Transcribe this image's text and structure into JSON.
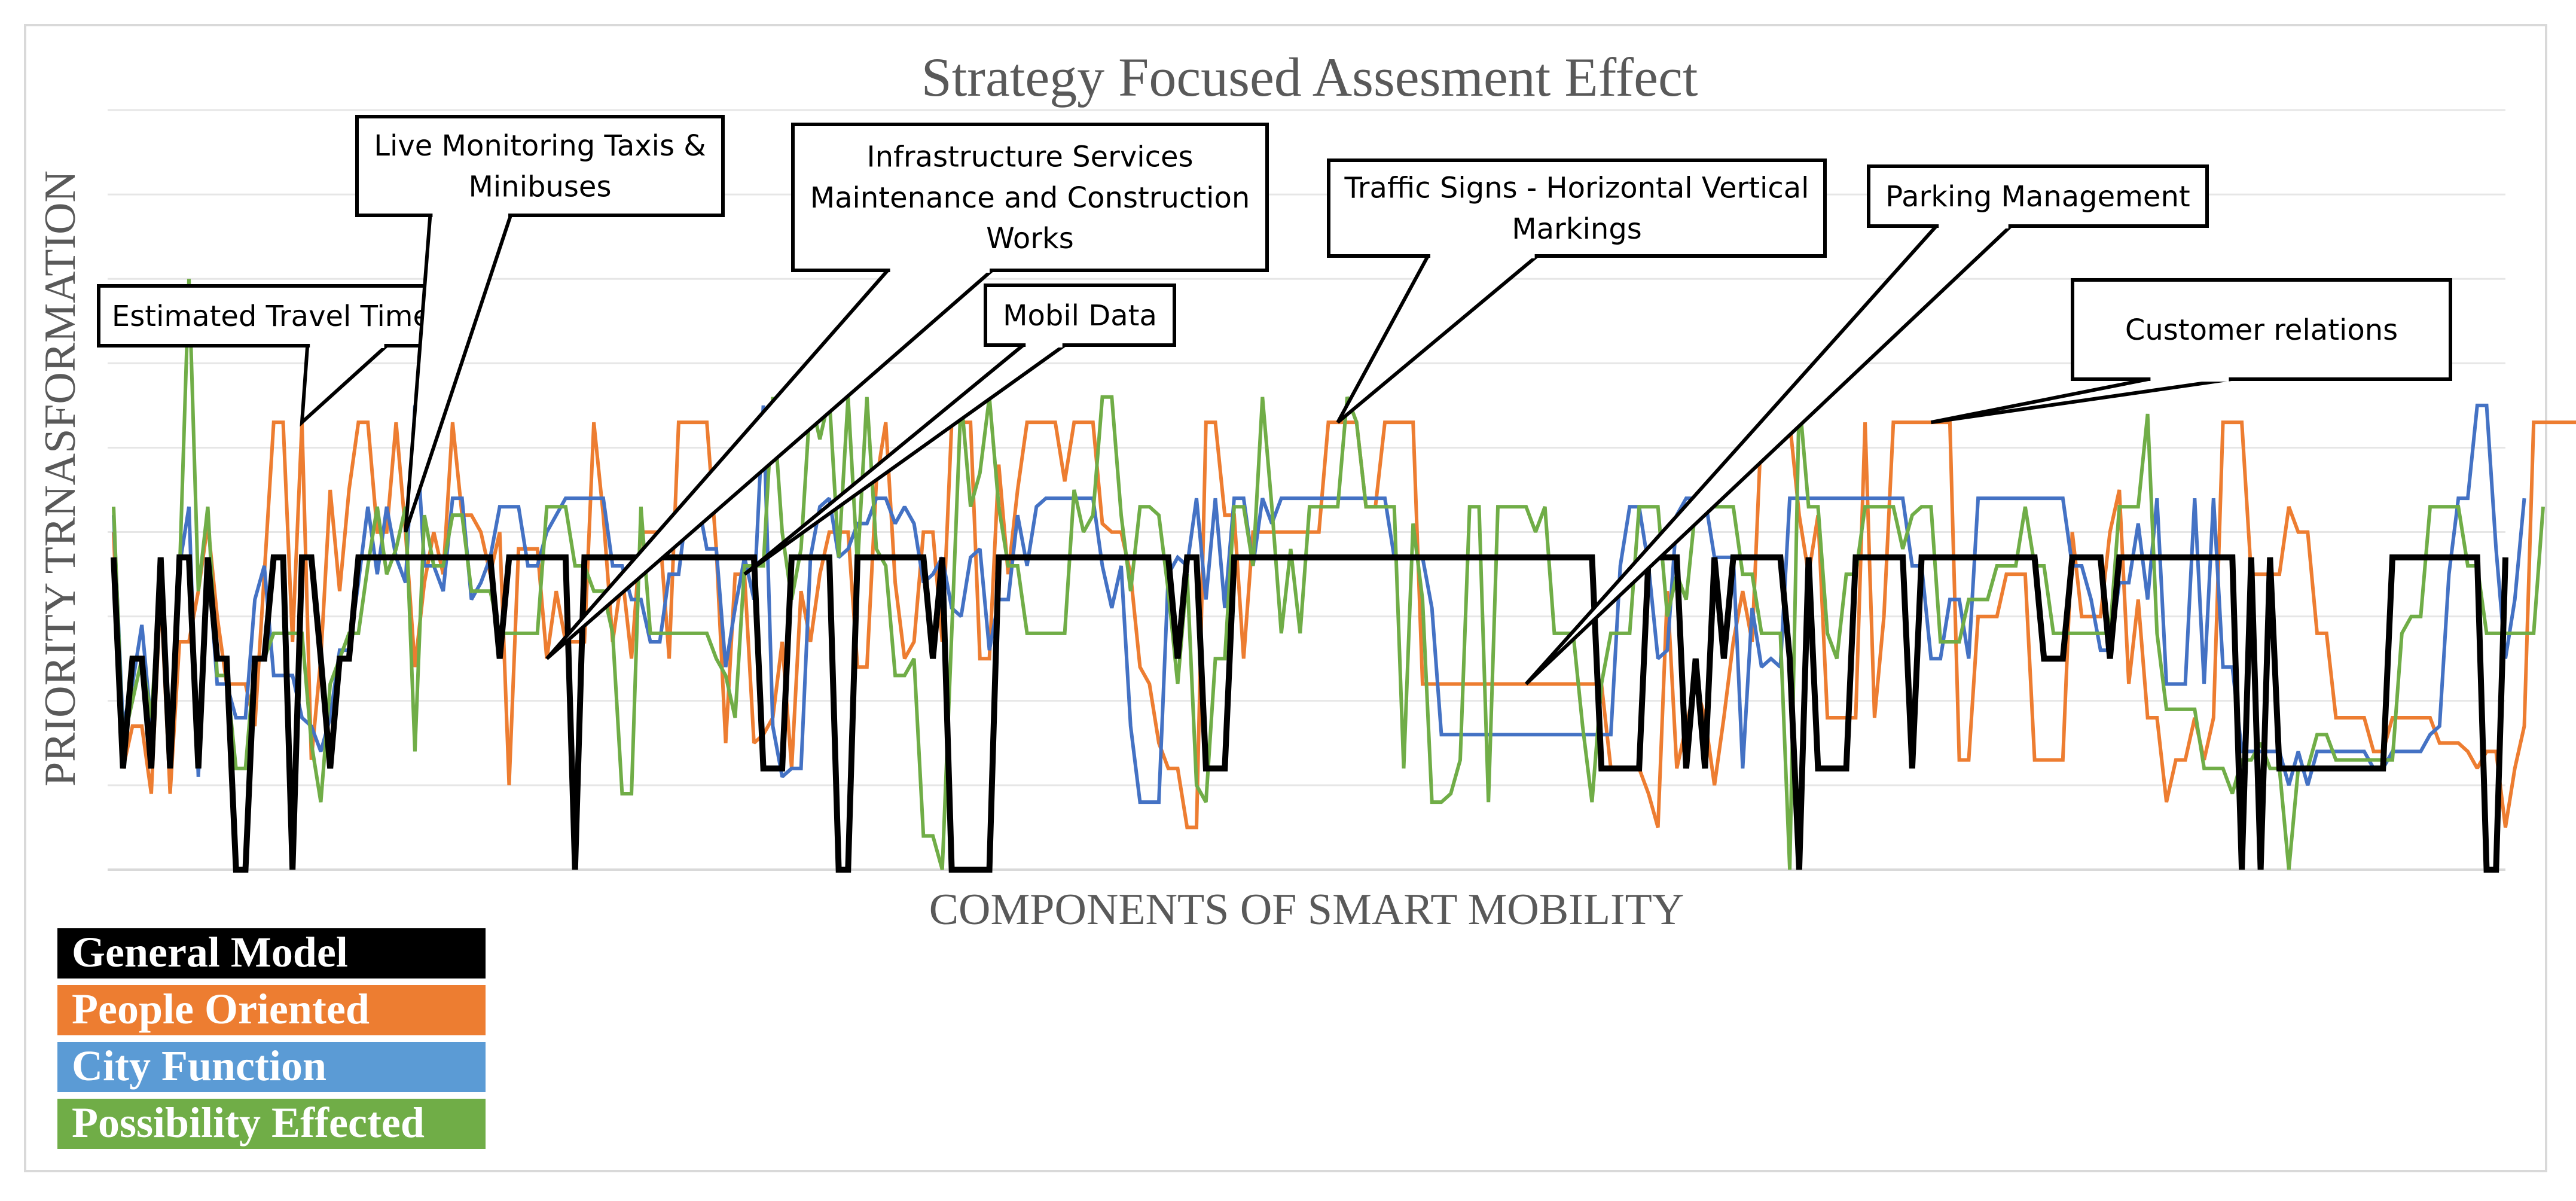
{
  "chart_data": {
    "type": "line",
    "title": "Strategy Focused Assesment Effect",
    "xlabel": "COMPONENTS OF SMART MOBILITY",
    "ylabel": "PRIORITY TRNASFORMATION",
    "ylim": [
      0,
      9
    ],
    "grid": true,
    "legend_position": "bottom-left",
    "colors": {
      "general": "#000000",
      "people": "#ed7d31",
      "city": "#4472c4",
      "possibility": "#70ad47",
      "grid": "#e6e6e6",
      "axis": "#d9d9d9",
      "title": "#595959"
    },
    "series": [
      {
        "key": "general",
        "name": "General Model",
        "color": "#000000",
        "width": 10,
        "legend_color": "#000000",
        "values": [
          3.7,
          1.2,
          2.5,
          2.5,
          1.2,
          3.7,
          1.2,
          3.7,
          3.7,
          1.2,
          3.7,
          2.5,
          2.5,
          0,
          0,
          2.5,
          2.5,
          3.7,
          3.7,
          0,
          3.7,
          3.7,
          2.5,
          1.2,
          2.5,
          2.5,
          3.7,
          3.7,
          3.7,
          3.7,
          3.7,
          3.7,
          3.7,
          3.7,
          3.7,
          3.7,
          3.7,
          3.7,
          3.7,
          3.7,
          3.7,
          2.5,
          3.7,
          3.7,
          3.7,
          3.7,
          3.7,
          3.7,
          3.7,
          0,
          3.7,
          3.7,
          3.7,
          3.7,
          3.7,
          3.7,
          3.7,
          3.7,
          3.7,
          3.7,
          3.7,
          3.7,
          3.7,
          3.7,
          3.7,
          3.7,
          3.7,
          3.7,
          3.7,
          1.2,
          1.2,
          1.2,
          3.7,
          3.7,
          3.7,
          3.7,
          3.7,
          0,
          0,
          3.7,
          3.7,
          3.7,
          3.7,
          3.7,
          3.7,
          3.7,
          3.7,
          2.5,
          3.7,
          0,
          0,
          0,
          0,
          0,
          3.7,
          3.7,
          3.7,
          3.7,
          3.7,
          3.7,
          3.7,
          3.7,
          3.7,
          3.7,
          3.7,
          3.7,
          3.7,
          3.7,
          3.7,
          3.7,
          3.7,
          3.7,
          3.7,
          2.5,
          3.7,
          3.7,
          1.2,
          1.2,
          1.2,
          3.7,
          3.7,
          3.7,
          3.7,
          3.7,
          3.7,
          3.7,
          3.7,
          3.7,
          3.7,
          3.7,
          3.7,
          3.7,
          3.7,
          3.7,
          3.7,
          3.7,
          3.7,
          3.7,
          3.7,
          3.7,
          3.7,
          3.7,
          3.7,
          3.7,
          3.7,
          3.7,
          3.7,
          3.7,
          3.7,
          3.7,
          3.7,
          3.7,
          3.7,
          3.7,
          3.7,
          3.7,
          3.7,
          3.7,
          1.2,
          1.2,
          1.2,
          1.2,
          1.2,
          3.7,
          3.7,
          3.7,
          3.7,
          1.2,
          2.5,
          1.2,
          3.7,
          2.5,
          3.7,
          3.7,
          3.7,
          3.7,
          3.7,
          3.7,
          2.5,
          0,
          3.7,
          1.2,
          1.2,
          1.2,
          1.2,
          3.7,
          3.7,
          3.7,
          3.7,
          3.7,
          3.7,
          1.2,
          3.7,
          3.7,
          3.7,
          3.7,
          3.7,
          3.7,
          3.7,
          3.7,
          3.7,
          3.7,
          3.7,
          3.7,
          3.7,
          2.5,
          2.5,
          2.5,
          3.7,
          3.7,
          3.7,
          3.7,
          2.5,
          3.7,
          3.7,
          3.7,
          3.7,
          3.7,
          3.7,
          3.7,
          3.7,
          3.7,
          3.7,
          3.7,
          3.7,
          3.7,
          0,
          3.7,
          0,
          3.7,
          1.2,
          1.2,
          1.2,
          1.2,
          1.2,
          1.2,
          1.2,
          1.2,
          1.2,
          1.2,
          1.2,
          1.2,
          3.7,
          3.7,
          3.7,
          3.7,
          3.7,
          3.7,
          3.7,
          3.7,
          3.7,
          3.7,
          0,
          0,
          3.7
        ]
      },
      {
        "key": "people",
        "name": "People Oriented",
        "color": "#ed7d31",
        "width": 6,
        "legend_color": "#ed7d31",
        "values": [
          4,
          1.2,
          1.7,
          1.7,
          0.9,
          3.3,
          0.9,
          2.7,
          2.7,
          3.3,
          4.1,
          3,
          2.2,
          2.2,
          2.2,
          1.7,
          3.5,
          5.3,
          5.3,
          2.7,
          5.3,
          1.3,
          2.5,
          4.5,
          3.3,
          4.5,
          5.3,
          5.3,
          4,
          4,
          5.3,
          4,
          2.4,
          3.4,
          4,
          3.5,
          5.3,
          4.2,
          4.2,
          4,
          3.5,
          4,
          1,
          3.8,
          3.8,
          3.8,
          2.5,
          3.3,
          2.7,
          2.7,
          2.7,
          5.3,
          4.2,
          2.7,
          3.5,
          2.5,
          4,
          4,
          4,
          2.5,
          5.3,
          5.3,
          5.3,
          5.3,
          3.8,
          1.5,
          3.5,
          3.5,
          1.5,
          1.6,
          1.8,
          2.7,
          1.2,
          3.3,
          2.7,
          3.5,
          4,
          4,
          4,
          2.4,
          2.4,
          4.6,
          5.3,
          3.4,
          2.5,
          2.7,
          4,
          4,
          2.7,
          5.3,
          5.3,
          5.3,
          2.5,
          2.5,
          4.8,
          3.5,
          4.5,
          5.3,
          5.3,
          5.3,
          5.3,
          4.6,
          5.3,
          5.3,
          5.3,
          4.1,
          4,
          4,
          3.5,
          2.4,
          2.2,
          1.5,
          1.2,
          1.2,
          0.5,
          0.5,
          5.3,
          5.3,
          4.2,
          4.2,
          2.5,
          4,
          4,
          4,
          4,
          4,
          4,
          4,
          4,
          5.3,
          5.3,
          5.3,
          5.3,
          4.3,
          4.3,
          5.3,
          5.3,
          5.3,
          5.3,
          2.2,
          2.2,
          2.2,
          2.2,
          2.2,
          2.2,
          2.2,
          2.2,
          2.2,
          2.2,
          2.2,
          2.2,
          2.2,
          2.2,
          2.2,
          2.2,
          2.2,
          2.2,
          2.2,
          2.2,
          1.2,
          1.2,
          1.2,
          1.2,
          0.9,
          0.5,
          3.3,
          1.2,
          1.7,
          2.2,
          1.8,
          1,
          1.8,
          2.7,
          3.3,
          2.7,
          5.3,
          5.3,
          5.3,
          5.3,
          4.2,
          3.5,
          4.2,
          1.8,
          1.8,
          1.8,
          1.8,
          5.3,
          1.8,
          3,
          5.3,
          5.3,
          5.3,
          5.3,
          5.3,
          5.3,
          5.3,
          1.3,
          1.3,
          3,
          3,
          3,
          3.5,
          3.5,
          3.5,
          1.3,
          1.3,
          1.3,
          1.3,
          4,
          3,
          3,
          3,
          4,
          4.5,
          2.2,
          3.2,
          1.8,
          1.8,
          0.8,
          1.3,
          1.3,
          1.8,
          1.3,
          1.8,
          5.3,
          5.3,
          5.3,
          3.5,
          3.5,
          3.5,
          3.5,
          4.3,
          4,
          4,
          2.8,
          2.8,
          1.8,
          1.8,
          1.8,
          1.8,
          1.4,
          1.4,
          1.8,
          1.8,
          1.8,
          1.8,
          1.8,
          1.5,
          1.5,
          1.5,
          1.4,
          1.2,
          1.4,
          1.4,
          0.5,
          1.2,
          1.7,
          5.3,
          5.3,
          5.3,
          5.3,
          5.3,
          5.3,
          5.3,
          4.5,
          2.5,
          2.5,
          3.5,
          5.3
        ]
      },
      {
        "key": "city",
        "name": "City Function",
        "color": "#4472c4",
        "width": 6,
        "legend_color": "#5b9bd5",
        "values": [
          4.2,
          1.7,
          2.2,
          2.9,
          1.7,
          3.6,
          1.2,
          3.6,
          4.3,
          1.1,
          3.7,
          2.2,
          2.2,
          1.8,
          1.8,
          3.2,
          3.6,
          2.3,
          2.3,
          2.3,
          1.8,
          1.7,
          1.4,
          1.8,
          2.6,
          2.6,
          3.4,
          4.3,
          3.5,
          4.3,
          3.7,
          3.4,
          5.5,
          3.6,
          3.6,
          3.3,
          4.4,
          4.4,
          3.2,
          3.4,
          3.7,
          4.3,
          4.3,
          4.3,
          3.6,
          3.6,
          4,
          4.2,
          4.4,
          4.4,
          4.4,
          4.4,
          4.4,
          3.6,
          3.6,
          3.2,
          3.2,
          2.7,
          2.7,
          3.5,
          3.5,
          4.4,
          4.4,
          3.8,
          3.8,
          2.4,
          3.1,
          3.7,
          3.2,
          5.5,
          1.7,
          1.1,
          1.2,
          1.2,
          3.7,
          4.3,
          4.4,
          3.7,
          3.8,
          4.1,
          4.1,
          4.4,
          4.4,
          4.1,
          4.3,
          4.1,
          3.4,
          3.5,
          3.7,
          3.1,
          3,
          3.7,
          3.8,
          2.6,
          3.2,
          3.2,
          4.2,
          3.6,
          4.3,
          4.4,
          4.4,
          4.4,
          4.4,
          4.4,
          4.4,
          3.6,
          3.1,
          3.6,
          1.7,
          0.8,
          0.8,
          0.8,
          3.5,
          3.7,
          3.6,
          4.4,
          3.2,
          4.4,
          3.1,
          4.4,
          4.4,
          3.6,
          4.4,
          4.1,
          4.4,
          4.4,
          4.4,
          4.4,
          4.4,
          4.4,
          4.4,
          4.4,
          4.4,
          4.4,
          4.4,
          4.4,
          3.7,
          3.7,
          3.7,
          3.7,
          3.1,
          1.6,
          1.6,
          1.6,
          1.6,
          1.6,
          1.6,
          1.6,
          1.6,
          1.6,
          1.6,
          1.6,
          1.6,
          1.6,
          1.6,
          1.6,
          1.6,
          1.6,
          1.6,
          1.6,
          3.6,
          4.3,
          4.3,
          3.6,
          2.5,
          2.6,
          4.2,
          4.4,
          4.4,
          4.4,
          3.7,
          3.7,
          3.7,
          1.2,
          3.1,
          2.4,
          2.5,
          2.4,
          4.4,
          4.4,
          4.4,
          4.4,
          4.4,
          4.4,
          4.4,
          4.4,
          4.4,
          4.4,
          4.4,
          4.4,
          4.4,
          3.6,
          3.6,
          2.5,
          2.5,
          3.2,
          3.2,
          2.5,
          4.4,
          4.4,
          4.4,
          4.4,
          4.4,
          4.4,
          4.4,
          4.4,
          4.4,
          4.4,
          3.6,
          3.6,
          3.2,
          2.6,
          2.6,
          3.4,
          3.4,
          4.1,
          3.2,
          4.4,
          2.2,
          2.2,
          2.2,
          4.4,
          2.2,
          4.4,
          2.4,
          2.4,
          1.4,
          1.4,
          1.4,
          1.4,
          1.4,
          1,
          1.4,
          1,
          1.4,
          1.4,
          1.4,
          1.4,
          1.4,
          1.4,
          1.2,
          1.2,
          1.4,
          1.4,
          1.4,
          1.4,
          1.6,
          1.7,
          3.5,
          4.4,
          4.4,
          5.5,
          5.5,
          3.8,
          2.5,
          3.2,
          4.4
        ]
      },
      {
        "key": "possibility",
        "name": "Possibility  Effected",
        "color": "#70ad47",
        "width": 6,
        "legend_color": "#70ad47",
        "values": [
          4.3,
          1.5,
          2,
          2.5,
          1.8,
          3.5,
          1.5,
          3.5,
          7,
          3.3,
          4.3,
          2.3,
          2.3,
          1.2,
          1.2,
          2.5,
          2.5,
          2.8,
          2.8,
          2.8,
          2.8,
          1.5,
          0.8,
          2.2,
          2.5,
          2.8,
          2.8,
          3.6,
          4.3,
          3.5,
          3.8,
          4.3,
          1.4,
          4.2,
          3.6,
          3.6,
          4.2,
          4.2,
          3.3,
          3.3,
          3.3,
          2.8,
          2.8,
          2.8,
          2.8,
          2.8,
          4.3,
          4.3,
          4.3,
          3.6,
          3.6,
          3.3,
          3.3,
          2.8,
          0.9,
          0.9,
          4.3,
          2.8,
          2.8,
          2.8,
          2.8,
          2.8,
          2.8,
          2.8,
          2.5,
          2.3,
          1.8,
          3.6,
          3.6,
          3.6,
          5.6,
          4,
          3.2,
          3.8,
          5.6,
          5.1,
          5.6,
          3.7,
          5.6,
          3.6,
          5.6,
          3.8,
          3.6,
          2.3,
          2.3,
          2.5,
          0.4,
          0.4,
          0,
          2.8,
          5.6,
          4.3,
          4.7,
          5.6,
          4.3,
          3.6,
          3.6,
          2.8,
          2.8,
          2.8,
          2.8,
          2.8,
          4.5,
          4,
          4.2,
          5.6,
          5.6,
          4.2,
          3.3,
          4.3,
          4.3,
          4.2,
          3.3,
          2.2,
          3.5,
          1,
          0.8,
          2.5,
          2.5,
          4.3,
          4.3,
          3.6,
          5.6,
          4.3,
          2.8,
          3.8,
          2.8,
          4.3,
          4.3,
          4.3,
          4.3,
          5.6,
          5.3,
          4.3,
          4.3,
          4.3,
          4.3,
          1.2,
          4.1,
          3.2,
          0.8,
          0.8,
          0.9,
          1.3,
          4.3,
          4.3,
          0.8,
          4.3,
          4.3,
          4.3,
          4.3,
          4,
          4.3,
          2.8,
          2.8,
          2.8,
          1.7,
          0.8,
          2.2,
          2.8,
          2.8,
          2.8,
          4.3,
          4.3,
          4.3,
          3,
          3.5,
          3.2,
          4.3,
          4.3,
          4.3,
          4.3,
          4.3,
          3.5,
          3.5,
          2.8,
          2.8,
          2.8,
          0,
          5.6,
          4.3,
          4.3,
          2.8,
          2.5,
          3.5,
          3.5,
          4.3,
          4.3,
          4.3,
          4.3,
          3.8,
          4.2,
          4.3,
          4.3,
          2.7,
          2.7,
          2.7,
          3.2,
          3.2,
          3.2,
          3.6,
          3.6,
          3.6,
          4.3,
          3.6,
          3.6,
          2.8,
          2.8,
          2.8,
          2.8,
          2.8,
          2.8,
          2.8,
          4.3,
          4.3,
          4.3,
          5.4,
          2.8,
          1.9,
          1.9,
          1.9,
          1.9,
          1.2,
          1.2,
          1.2,
          0.9,
          1.3,
          1.3,
          1.5,
          1.2,
          1.2,
          0,
          1.2,
          1.2,
          1.6,
          1.6,
          1.3,
          1.3,
          1.3,
          1.3,
          1.3,
          1.3,
          1.3,
          2.8,
          3,
          3,
          4.3,
          4.3,
          4.3,
          4.3,
          3.6,
          3.6,
          2.8,
          2.8,
          2.8,
          2.8,
          2.8,
          2.8,
          4.3
        ]
      }
    ],
    "callouts": [
      {
        "text": "Estimated Travel Times",
        "point_index": 20,
        "series": "people"
      },
      {
        "text": "Live Monitoring Taxis & Minibuses",
        "point_index": 31,
        "series": "people"
      },
      {
        "text": "Infrastructure Services Maintenance and Construction Works",
        "point_index": 46,
        "series": "people"
      },
      {
        "text": "Mobil Data",
        "point_index": 67,
        "series": "people"
      },
      {
        "text": "Traffic Signs - Horizontal Vertical Markings",
        "point_index": 130,
        "series": "people"
      },
      {
        "text": "Parking Management",
        "point_index": 150,
        "series": "people"
      },
      {
        "text": "Customer relations",
        "point_index": 193,
        "series": "people"
      }
    ]
  }
}
